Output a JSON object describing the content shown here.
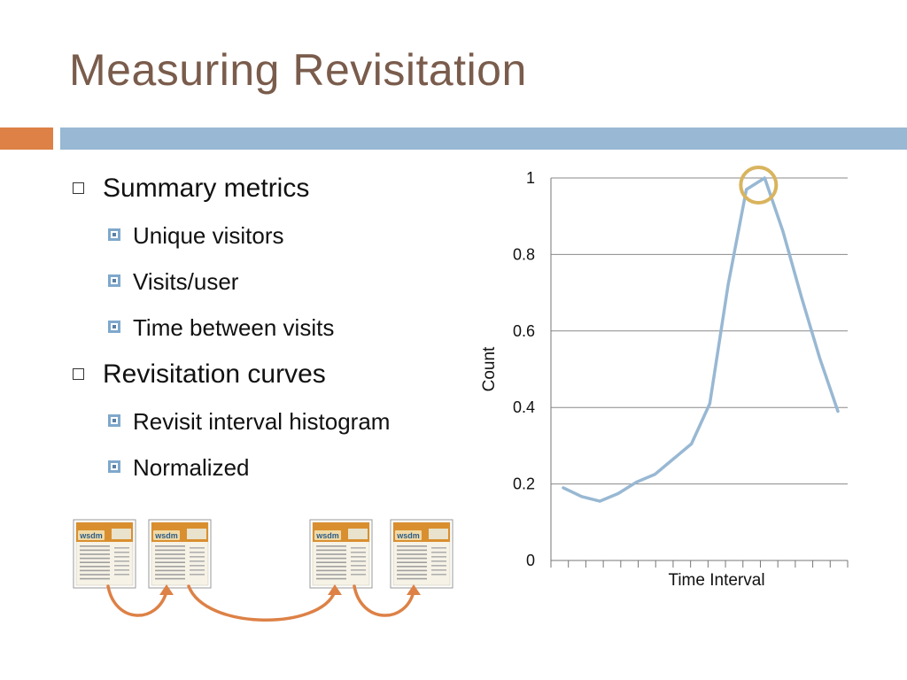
{
  "slide": {
    "title": "Measuring Revisitation",
    "bullets": [
      {
        "text": "Summary metrics",
        "subs": [
          "Unique visitors",
          "Visits/user",
          "Time between visits"
        ]
      },
      {
        "text": "Revisitation curves",
        "subs": [
          "Revisit interval histogram",
          "Normalized"
        ]
      }
    ],
    "thumbnail_logo_text": "wsdm"
  },
  "colors": {
    "title": "#7a5c4c",
    "accent_orange": "#dd8146",
    "accent_blue": "#98b8d3",
    "line": "#98b8d3",
    "highlight": "#d9b45e",
    "arrow": "#dd8146"
  },
  "chart_data": {
    "type": "line",
    "xlabel": "Time Interval",
    "ylabel": "Count",
    "ylim": [
      0,
      1
    ],
    "yticks": [
      "0",
      "0.2",
      "0.4",
      "0.6",
      "0.8",
      "1"
    ],
    "series": [
      {
        "values": [
          0.19,
          0.167,
          0.155,
          0.175,
          0.205,
          0.225,
          0.265,
          0.305,
          0.41,
          0.72,
          0.97,
          1.0,
          0.86,
          0.69,
          0.53,
          0.39
        ]
      }
    ],
    "highlight_index": 11,
    "grid": true
  }
}
